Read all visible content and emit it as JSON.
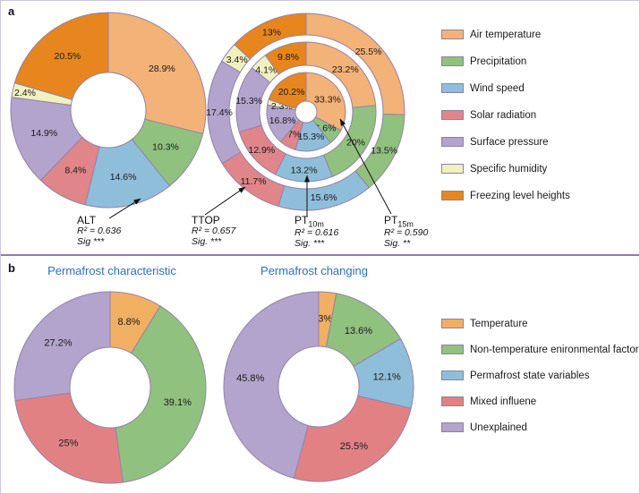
{
  "figure": {
    "panel_a_label": "a",
    "panel_b_label": "b"
  },
  "panel_a": {
    "legend": [
      {
        "label": "Air temperature",
        "color": "#F2B278"
      },
      {
        "label": "Precipitation",
        "color": "#90C17F"
      },
      {
        "label": "Wind speed",
        "color": "#8FBEDB"
      },
      {
        "label": "Solar radiation",
        "color": "#E08589"
      },
      {
        "label": "Surface pressure",
        "color": "#B2A4CD"
      },
      {
        "label": "Specific humidity",
        "color": "#F0F1C1"
      },
      {
        "label": "Freezing level heights",
        "color": "#E7861E"
      }
    ],
    "annotations": [
      {
        "name": "ALT",
        "sub": "",
        "r2": "R² = 0.636",
        "sig": "Sig ***"
      },
      {
        "name": "TTOP",
        "sub": "",
        "r2": "R² = 0.657",
        "sig": "Sig. ***"
      },
      {
        "name": "PT",
        "sub": "10m",
        "r2": "R² = 0.616",
        "sig": "Sig. ***"
      },
      {
        "name": "PT",
        "sub": "15m",
        "r2": "R² = 0.590",
        "sig": "Sig. **"
      }
    ]
  },
  "panel_b": {
    "titles": [
      "Permafrost characteristic",
      "Permafrost changing"
    ],
    "title_color": "#2E6FBF",
    "legend": [
      {
        "label": "Temperature",
        "color": "#F1AF63"
      },
      {
        "label": "Non-temperature enironmental factors",
        "color": "#90C17F"
      },
      {
        "label": "Permafrost state variables",
        "color": "#8FBEDB"
      },
      {
        "label": "Mixed influene",
        "color": "#E28184"
      },
      {
        "label": "Unexplained",
        "color": "#B2A4CD"
      }
    ]
  },
  "chart_data": [
    {
      "id": "alt",
      "type": "pie",
      "title": "ALT",
      "categories": [
        "Air temperature",
        "Precipitation",
        "Wind speed",
        "Solar radiation",
        "Surface pressure",
        "Specific humidity",
        "Freezing level heights"
      ],
      "values": [
        28.9,
        10.3,
        14.6,
        8.4,
        14.9,
        2.4,
        20.5
      ],
      "display_labels": [
        "28.9%",
        "10.3%",
        "14.6%",
        "8.4%",
        "14.9%",
        "2.4%",
        "20.5%"
      ],
      "r2": 0.636,
      "sig": "***"
    },
    {
      "id": "nested",
      "type": "pie",
      "title": "TTOP / PT10m / PT15m nested donut",
      "categories": [
        "Air temperature",
        "Precipitation",
        "Wind speed",
        "Solar radiation",
        "Surface pressure",
        "Specific humidity",
        "Freezing level heights"
      ],
      "series": [
        {
          "name": "TTOP",
          "values": [
            25.5,
            13.5,
            15.6,
            11.7,
            17.4,
            3.4,
            13
          ],
          "display_labels": [
            "25.5%",
            "13.5%",
            "15.6%",
            "11.7%",
            "17.4%",
            "3.4%",
            "13%"
          ],
          "r2": 0.657,
          "sig": "***"
        },
        {
          "name": "PT10m",
          "values": [
            23.2,
            20,
            13.2,
            12.9,
            15.3,
            4.1,
            9.8
          ],
          "display_labels": [
            "23.2%",
            "20%",
            "13.2%",
            "12.9%",
            "15.3%",
            "4.1%",
            "9.8%"
          ],
          "r2": 0.616,
          "sig": "***"
        },
        {
          "name": "PT15m",
          "values": [
            33.3,
            6.6,
            15.3,
            7,
            16.8,
            2.3,
            20.2
          ],
          "display_labels": [
            "33.3%",
            "6.6%",
            "15.3%",
            "7%",
            "16.8%",
            "2.3%",
            "20.2%"
          ],
          "r2": 0.59,
          "sig": "**"
        }
      ]
    },
    {
      "id": "perm_char",
      "type": "pie",
      "title": "Permafrost characteristic",
      "categories": [
        "Temperature",
        "Non-temperature enironmental factors",
        "Permafrost state variables",
        "Mixed influene",
        "Unexplained"
      ],
      "values": [
        8.8,
        39.1,
        0,
        25,
        27.2
      ],
      "display_labels": [
        "8.8%",
        "39.1%",
        "",
        "25%",
        "27.2%"
      ]
    },
    {
      "id": "perm_chg",
      "type": "pie",
      "title": "Permafrost changing",
      "categories": [
        "Temperature",
        "Non-temperature enironmental factors",
        "Permafrost state variables",
        "Mixed influene",
        "Unexplained"
      ],
      "values": [
        3,
        13.6,
        12.1,
        25.5,
        45.8
      ],
      "display_labels": [
        "3%",
        "13.6%",
        "12.1%",
        "25.5%",
        "45.8%"
      ]
    }
  ]
}
